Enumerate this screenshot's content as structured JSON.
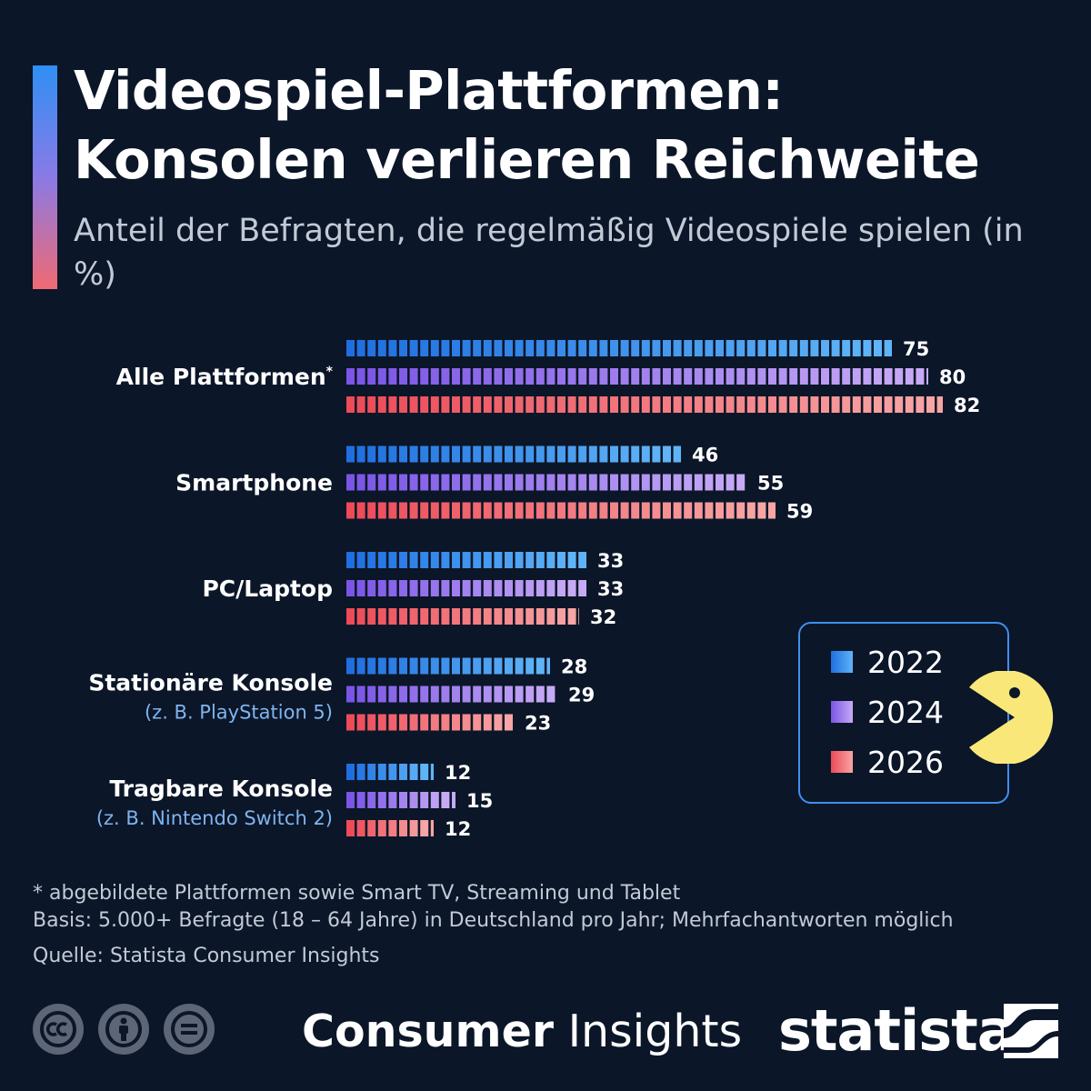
{
  "header": {
    "title_line1": "Videospiel-Plattformen:",
    "title_line2": "Konsolen verlieren Reichweite",
    "subtitle": "Anteil der Befragten, die regelmäßig Videospiele spielen (in %)"
  },
  "colors": {
    "background": "#0b1628",
    "series_2022": [
      "#1f6fe0",
      "#5fb4f7"
    ],
    "series_2024": [
      "#7a55e6",
      "#c7aaf5"
    ],
    "series_2026": [
      "#ec4b57",
      "#f7a5a5"
    ],
    "legend_border": "#3f8fef",
    "pacman": "#f9e879"
  },
  "chart_data": {
    "type": "bar",
    "orientation": "horizontal",
    "unit": "%",
    "categories": [
      {
        "label": "Alle Plattformen",
        "footnote_mark": "*",
        "sublabel": ""
      },
      {
        "label": "Smartphone",
        "footnote_mark": "",
        "sublabel": ""
      },
      {
        "label": "PC/Laptop",
        "footnote_mark": "",
        "sublabel": ""
      },
      {
        "label": "Stationäre Konsole",
        "footnote_mark": "",
        "sublabel": "(z. B. PlayStation 5)"
      },
      {
        "label": "Tragbare Konsole",
        "footnote_mark": "",
        "sublabel": "(z. B. Nintendo Switch 2)"
      }
    ],
    "series": [
      {
        "name": "2022",
        "values": [
          75,
          46,
          33,
          28,
          12
        ]
      },
      {
        "name": "2024",
        "values": [
          80,
          55,
          33,
          29,
          15
        ]
      },
      {
        "name": "2026",
        "values": [
          82,
          59,
          32,
          23,
          12
        ]
      }
    ],
    "xlim": [
      0,
      100
    ],
    "grid": false,
    "legend_position": "right"
  },
  "footer": {
    "note": "* abgebildete Plattformen sowie Smart TV, Streaming und Tablet",
    "basis": "Basis: 5.000+ Befragte (18 – 64 Jahre) in Deutschland pro Jahr; Mehrfachantworten möglich",
    "source": "Quelle: Statista Consumer Insights",
    "brand_bold": "Consumer",
    "brand_light": "Insights",
    "logo_text": "statista"
  }
}
